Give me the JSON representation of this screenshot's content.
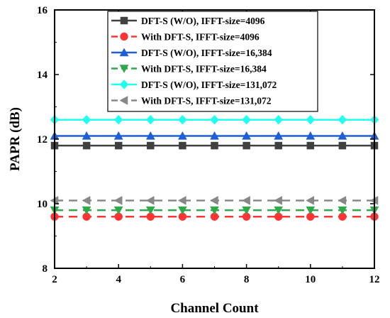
{
  "chart_data": {
    "type": "line",
    "xlabel": "Channel Count",
    "ylabel": "PAPR (dB)",
    "xlim": [
      2,
      12
    ],
    "ylim": [
      8,
      16
    ],
    "xticks": [
      "2",
      "4",
      "6",
      "8",
      "10",
      "12"
    ],
    "yticks": [
      "8",
      "10",
      "12",
      "14",
      "16"
    ],
    "x": [
      2,
      3,
      4,
      5,
      6,
      7,
      8,
      9,
      10,
      11,
      12
    ],
    "grid": false,
    "legend_position": "top-right",
    "series": [
      {
        "name": "DFT-S (W/O), IFFT-size=4096",
        "color": "#404040",
        "marker": "square",
        "dash": "solid",
        "values": [
          11.8,
          11.8,
          11.8,
          11.8,
          11.8,
          11.8,
          11.8,
          11.8,
          11.8,
          11.8,
          11.8
        ]
      },
      {
        "name": "With DFT-S, IFFT-size=4096",
        "color": "#ff3333",
        "marker": "circle",
        "dash": "dashed",
        "values": [
          9.6,
          9.6,
          9.6,
          9.6,
          9.6,
          9.6,
          9.6,
          9.6,
          9.6,
          9.6,
          9.6
        ]
      },
      {
        "name": "DFT-S (W/O), IFFT-size=16,384",
        "color": "#1f5fd6",
        "marker": "triangle-up",
        "dash": "solid",
        "values": [
          12.1,
          12.1,
          12.1,
          12.1,
          12.1,
          12.1,
          12.1,
          12.1,
          12.1,
          12.1,
          12.1
        ]
      },
      {
        "name": "With DFT-S, IFFT-size=16,384",
        "color": "#2ea84a",
        "marker": "triangle-down",
        "dash": "dashed",
        "values": [
          9.8,
          9.8,
          9.8,
          9.8,
          9.8,
          9.8,
          9.8,
          9.8,
          9.8,
          9.8,
          9.8
        ]
      },
      {
        "name": "DFT-S (W/O), IFFT-size=131,072",
        "color": "#22ffee",
        "marker": "diamond",
        "dash": "solid",
        "values": [
          12.6,
          12.6,
          12.6,
          12.6,
          12.6,
          12.6,
          12.6,
          12.6,
          12.6,
          12.6,
          12.6
        ]
      },
      {
        "name": "With DFT-S, IFFT-size=131,072",
        "color": "#888888",
        "marker": "triangle-left",
        "dash": "dashed",
        "values": [
          10.1,
          10.1,
          10.1,
          10.1,
          10.1,
          10.1,
          10.1,
          10.1,
          10.1,
          10.1,
          10.1
        ]
      }
    ]
  }
}
